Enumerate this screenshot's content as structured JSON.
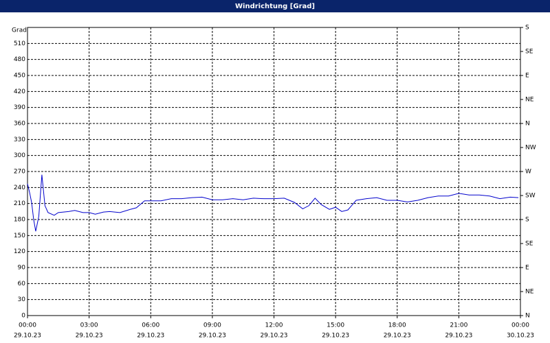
{
  "chart_data": {
    "type": "line",
    "title": "Windrichtung [Grad]",
    "y_label": "Grad",
    "xlim": [
      0,
      24
    ],
    "ylim": [
      0,
      540
    ],
    "y2lim": [
      0,
      540
    ],
    "xticks": [
      {
        "value": 0,
        "label": "00:00",
        "sublabel": "29.10.23"
      },
      {
        "value": 3,
        "label": "03:00",
        "sublabel": "29.10.23"
      },
      {
        "value": 6,
        "label": "06:00",
        "sublabel": "29.10.23"
      },
      {
        "value": 9,
        "label": "09:00",
        "sublabel": "29.10.23"
      },
      {
        "value": 12,
        "label": "12:00",
        "sublabel": "29.10.23"
      },
      {
        "value": 15,
        "label": "15:00",
        "sublabel": "29.10.23"
      },
      {
        "value": 18,
        "label": "18:00",
        "sublabel": "29.10.23"
      },
      {
        "value": 21,
        "label": "21:00",
        "sublabel": "29.10.23"
      },
      {
        "value": 24,
        "label": "00:00",
        "sublabel": "30.10.23"
      }
    ],
    "yticks": [
      0,
      30,
      60,
      90,
      120,
      150,
      180,
      210,
      240,
      270,
      300,
      330,
      360,
      390,
      420,
      450,
      480,
      510
    ],
    "y2ticks": [
      {
        "value": 0,
        "label": "N"
      },
      {
        "value": 45,
        "label": "NE"
      },
      {
        "value": 90,
        "label": "E"
      },
      {
        "value": 135,
        "label": "SE"
      },
      {
        "value": 180,
        "label": "S"
      },
      {
        "value": 225,
        "label": "SW"
      },
      {
        "value": 270,
        "label": "W"
      },
      {
        "value": 315,
        "label": "NW"
      },
      {
        "value": 360,
        "label": "N"
      },
      {
        "value": 405,
        "label": "NE"
      },
      {
        "value": 450,
        "label": "E"
      },
      {
        "value": 495,
        "label": "SE"
      },
      {
        "value": 540,
        "label": "S"
      }
    ],
    "grid": true,
    "series": [
      {
        "color": "#0000cc",
        "x": [
          0,
          0.1,
          0.2,
          0.3,
          0.4,
          0.55,
          0.7,
          0.85,
          1.0,
          1.3,
          1.5,
          2,
          2.3,
          2.7,
          3,
          3.3,
          3.7,
          4,
          4.5,
          5,
          5.3,
          5.7,
          6,
          6.5,
          7,
          7.5,
          8,
          8.5,
          9,
          9.5,
          10,
          10.5,
          11,
          11.5,
          12,
          12.5,
          13,
          13.4,
          13.7,
          14,
          14.3,
          14.7,
          15,
          15.3,
          15.6,
          16,
          16.5,
          17,
          17.5,
          18,
          18.5,
          19,
          19.5,
          20,
          20.5,
          21,
          21.5,
          22,
          22.5,
          23,
          23.5,
          23.9
        ],
        "values": [
          247,
          231,
          212,
          180,
          158,
          186,
          264,
          206,
          193,
          188,
          193,
          195,
          197,
          193,
          193,
          190,
          194,
          195,
          193,
          199,
          202,
          215,
          215,
          215,
          219,
          219,
          221,
          222,
          217,
          217,
          219,
          217,
          220,
          219,
          219,
          220,
          212,
          200,
          206,
          220,
          208,
          199,
          203,
          195,
          198,
          216,
          219,
          221,
          216,
          216,
          213,
          216,
          221,
          224,
          224,
          229,
          226,
          226,
          224,
          219,
          222,
          221
        ]
      }
    ]
  }
}
